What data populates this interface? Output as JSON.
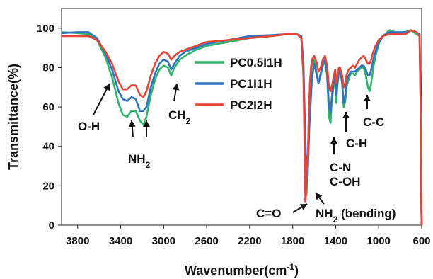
{
  "chart_data": {
    "type": "line",
    "xlabel": "Wavenumber(cm",
    "xlabel_sup": "-1",
    "xlabel_end": ")",
    "ylabel": "Transmittance(%)",
    "xlim": [
      3950,
      600
    ],
    "ylim": [
      0,
      110
    ],
    "x_reversed": true,
    "x_ticks": [
      3800,
      3400,
      3000,
      2600,
      2200,
      1800,
      1400,
      1000,
      600
    ],
    "y_ticks": [
      0,
      20,
      40,
      60,
      80,
      100
    ],
    "grid": false,
    "legend_position": "center-right",
    "series": [
      {
        "name": "PC0.5I1H",
        "color": "#2fb56a",
        "points": [
          [
            3950,
            98
          ],
          [
            3800,
            97.5
          ],
          [
            3700,
            97
          ],
          [
            3620,
            94
          ],
          [
            3540,
            85
          ],
          [
            3480,
            75
          ],
          [
            3420,
            62
          ],
          [
            3380,
            56
          ],
          [
            3340,
            55
          ],
          [
            3300,
            58
          ],
          [
            3260,
            58
          ],
          [
            3220,
            53
          ],
          [
            3190,
            51
          ],
          [
            3160,
            55
          ],
          [
            3120,
            66
          ],
          [
            3080,
            74
          ],
          [
            3040,
            79
          ],
          [
            3000,
            81
          ],
          [
            2960,
            80
          ],
          [
            2930,
            76
          ],
          [
            2900,
            80
          ],
          [
            2850,
            84
          ],
          [
            2800,
            86
          ],
          [
            2700,
            89
          ],
          [
            2600,
            91
          ],
          [
            2400,
            93
          ],
          [
            2200,
            95
          ],
          [
            2000,
            96
          ],
          [
            1850,
            97
          ],
          [
            1760,
            97
          ],
          [
            1720,
            96
          ],
          [
            1700,
            80
          ],
          [
            1685,
            40
          ],
          [
            1672,
            15
          ],
          [
            1660,
            28
          ],
          [
            1650,
            60
          ],
          [
            1640,
            68
          ],
          [
            1625,
            80
          ],
          [
            1600,
            84
          ],
          [
            1580,
            78
          ],
          [
            1560,
            72
          ],
          [
            1540,
            76
          ],
          [
            1520,
            81
          ],
          [
            1500,
            83
          ],
          [
            1480,
            76
          ],
          [
            1462,
            55
          ],
          [
            1448,
            52
          ],
          [
            1440,
            60
          ],
          [
            1430,
            66
          ],
          [
            1420,
            70
          ],
          [
            1405,
            75
          ],
          [
            1395,
            62
          ],
          [
            1385,
            70
          ],
          [
            1370,
            78
          ],
          [
            1360,
            80
          ],
          [
            1340,
            72
          ],
          [
            1325,
            60
          ],
          [
            1310,
            63
          ],
          [
            1300,
            70
          ],
          [
            1280,
            74
          ],
          [
            1260,
            77
          ],
          [
            1240,
            77
          ],
          [
            1220,
            76
          ],
          [
            1200,
            78
          ],
          [
            1180,
            79
          ],
          [
            1160,
            80
          ],
          [
            1140,
            80
          ],
          [
            1120,
            76
          ],
          [
            1100,
            70
          ],
          [
            1085,
            68
          ],
          [
            1070,
            72
          ],
          [
            1050,
            80
          ],
          [
            1030,
            86
          ],
          [
            1000,
            92
          ],
          [
            960,
            96
          ],
          [
            900,
            99
          ],
          [
            850,
            98
          ],
          [
            800,
            97
          ],
          [
            750,
            98
          ],
          [
            700,
            99
          ],
          [
            650,
            97
          ],
          [
            620,
            96
          ],
          [
            610,
            60
          ],
          [
            605,
            15
          ],
          [
            600,
            0
          ]
        ]
      },
      {
        "name": "PC1I1H",
        "color": "#2f72c4",
        "points": [
          [
            3950,
            97.5
          ],
          [
            3800,
            98
          ],
          [
            3700,
            98
          ],
          [
            3620,
            95
          ],
          [
            3540,
            87
          ],
          [
            3480,
            79
          ],
          [
            3420,
            68
          ],
          [
            3380,
            64
          ],
          [
            3340,
            63
          ],
          [
            3300,
            65
          ],
          [
            3260,
            64
          ],
          [
            3220,
            58
          ],
          [
            3190,
            58
          ],
          [
            3160,
            60
          ],
          [
            3120,
            70
          ],
          [
            3080,
            77
          ],
          [
            3040,
            82
          ],
          [
            3000,
            84
          ],
          [
            2960,
            83
          ],
          [
            2930,
            79
          ],
          [
            2900,
            82
          ],
          [
            2850,
            86
          ],
          [
            2800,
            88
          ],
          [
            2700,
            90
          ],
          [
            2600,
            92
          ],
          [
            2400,
            94
          ],
          [
            2200,
            96
          ],
          [
            2000,
            96.5
          ],
          [
            1850,
            97
          ],
          [
            1760,
            97
          ],
          [
            1720,
            96
          ],
          [
            1700,
            82
          ],
          [
            1685,
            50
          ],
          [
            1670,
            22
          ],
          [
            1660,
            25
          ],
          [
            1645,
            50
          ],
          [
            1630,
            65
          ],
          [
            1620,
            75
          ],
          [
            1600,
            82
          ],
          [
            1580,
            77
          ],
          [
            1560,
            72
          ],
          [
            1540,
            77
          ],
          [
            1520,
            82
          ],
          [
            1500,
            84
          ],
          [
            1480,
            78
          ],
          [
            1462,
            60
          ],
          [
            1448,
            57
          ],
          [
            1440,
            63
          ],
          [
            1430,
            68
          ],
          [
            1420,
            72
          ],
          [
            1405,
            76
          ],
          [
            1395,
            66
          ],
          [
            1385,
            72
          ],
          [
            1370,
            78
          ],
          [
            1360,
            79
          ],
          [
            1340,
            72
          ],
          [
            1325,
            62
          ],
          [
            1310,
            66
          ],
          [
            1300,
            72
          ],
          [
            1280,
            76
          ],
          [
            1260,
            78
          ],
          [
            1240,
            78
          ],
          [
            1220,
            78
          ],
          [
            1200,
            79
          ],
          [
            1180,
            80
          ],
          [
            1160,
            81
          ],
          [
            1140,
            81
          ],
          [
            1120,
            79
          ],
          [
            1100,
            76
          ],
          [
            1085,
            76
          ],
          [
            1070,
            79
          ],
          [
            1050,
            84
          ],
          [
            1030,
            88
          ],
          [
            1000,
            93
          ],
          [
            960,
            96
          ],
          [
            900,
            98
          ],
          [
            850,
            98
          ],
          [
            800,
            98
          ],
          [
            750,
            98
          ],
          [
            700,
            99
          ],
          [
            650,
            98
          ],
          [
            620,
            97
          ],
          [
            610,
            60
          ],
          [
            605,
            15
          ],
          [
            600,
            0
          ]
        ]
      },
      {
        "name": "PC2I2H",
        "color": "#e64436",
        "points": [
          [
            3950,
            96
          ],
          [
            3800,
            96
          ],
          [
            3700,
            96
          ],
          [
            3620,
            94
          ],
          [
            3540,
            88
          ],
          [
            3480,
            82
          ],
          [
            3420,
            73
          ],
          [
            3380,
            69
          ],
          [
            3340,
            69
          ],
          [
            3300,
            71
          ],
          [
            3260,
            71
          ],
          [
            3220,
            66
          ],
          [
            3190,
            65
          ],
          [
            3160,
            68
          ],
          [
            3120,
            76
          ],
          [
            3080,
            82
          ],
          [
            3040,
            86
          ],
          [
            3000,
            88
          ],
          [
            2960,
            87
          ],
          [
            2930,
            84
          ],
          [
            2900,
            86
          ],
          [
            2850,
            88
          ],
          [
            2800,
            89
          ],
          [
            2700,
            91
          ],
          [
            2600,
            93
          ],
          [
            2400,
            94
          ],
          [
            2200,
            95
          ],
          [
            2000,
            96
          ],
          [
            1850,
            97
          ],
          [
            1760,
            97
          ],
          [
            1720,
            95
          ],
          [
            1700,
            75
          ],
          [
            1690,
            40
          ],
          [
            1682,
            12
          ],
          [
            1675,
            18
          ],
          [
            1668,
            35
          ],
          [
            1660,
            30
          ],
          [
            1650,
            55
          ],
          [
            1640,
            72
          ],
          [
            1630,
            80
          ],
          [
            1620,
            84
          ],
          [
            1600,
            86
          ],
          [
            1580,
            83
          ],
          [
            1560,
            78
          ],
          [
            1540,
            80
          ],
          [
            1520,
            84
          ],
          [
            1500,
            86
          ],
          [
            1480,
            81
          ],
          [
            1462,
            70
          ],
          [
            1448,
            68
          ],
          [
            1440,
            70
          ],
          [
            1430,
            72
          ],
          [
            1420,
            75
          ],
          [
            1405,
            79
          ],
          [
            1395,
            72
          ],
          [
            1385,
            76
          ],
          [
            1370,
            80
          ],
          [
            1360,
            80
          ],
          [
            1340,
            76
          ],
          [
            1325,
            70
          ],
          [
            1310,
            72
          ],
          [
            1300,
            76
          ],
          [
            1280,
            79
          ],
          [
            1260,
            80
          ],
          [
            1240,
            81
          ],
          [
            1220,
            80
          ],
          [
            1200,
            82
          ],
          [
            1180,
            84
          ],
          [
            1160,
            85
          ],
          [
            1140,
            86
          ],
          [
            1120,
            84
          ],
          [
            1100,
            82
          ],
          [
            1085,
            82
          ],
          [
            1070,
            84
          ],
          [
            1050,
            88
          ],
          [
            1030,
            91
          ],
          [
            1000,
            94
          ],
          [
            960,
            96
          ],
          [
            900,
            97
          ],
          [
            850,
            97
          ],
          [
            800,
            97
          ],
          [
            750,
            97
          ],
          [
            700,
            99
          ],
          [
            650,
            98
          ],
          [
            620,
            96
          ],
          [
            610,
            60
          ],
          [
            605,
            15
          ],
          [
            600,
            0
          ]
        ]
      }
    ],
    "annotations": [
      {
        "id": "oh",
        "text": "O-H"
      },
      {
        "id": "nh2",
        "text": "NH",
        "sub": "2"
      },
      {
        "id": "ch2",
        "text": "CH",
        "sub": "2"
      },
      {
        "id": "co",
        "text": "C=O"
      },
      {
        "id": "nh2b",
        "text": "NH",
        "sub": "2",
        "after": " (bending)"
      },
      {
        "id": "cn",
        "text": "C-N"
      },
      {
        "id": "coh",
        "text": "C-OH"
      },
      {
        "id": "ch",
        "text": "C-H"
      },
      {
        "id": "cc",
        "text": "C-C"
      }
    ]
  }
}
